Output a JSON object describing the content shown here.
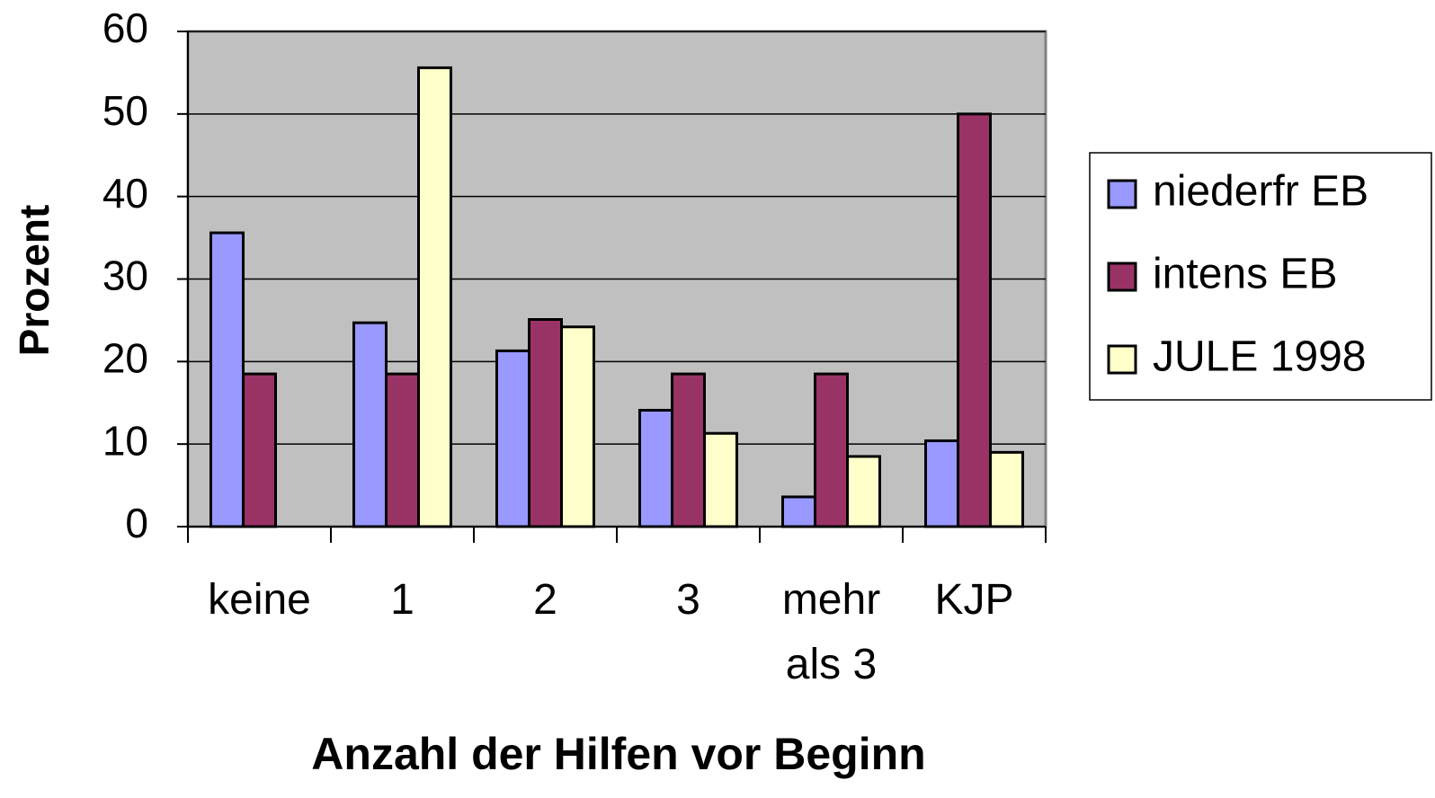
{
  "chart_data": {
    "type": "bar",
    "y_label": "Prozent",
    "x_label": "Anzahl der Hilfen vor Beginn",
    "categories": [
      "keine",
      "1",
      "2",
      "3",
      "mehr als 3",
      "KJP"
    ],
    "series": [
      {
        "name": "niederfr EB",
        "color": "#9999ff",
        "values": [
          35.6,
          24.7,
          21.3,
          14.1,
          3.6,
          10.4
        ]
      },
      {
        "name": "intens EB",
        "color": "#993366",
        "values": [
          18.5,
          18.5,
          25.1,
          18.5,
          18.5,
          50
        ]
      },
      {
        "name": "JULE 1998",
        "color": "#ffffcc",
        "values": [
          null,
          55.6,
          24.2,
          11.3,
          8.5,
          9.0
        ]
      }
    ],
    "ylim": [
      0,
      60
    ],
    "yticks": [
      0,
      10,
      20,
      30,
      40,
      50,
      60
    ],
    "grid": true,
    "plot_background": "#c0c0c0",
    "legend": "right"
  }
}
